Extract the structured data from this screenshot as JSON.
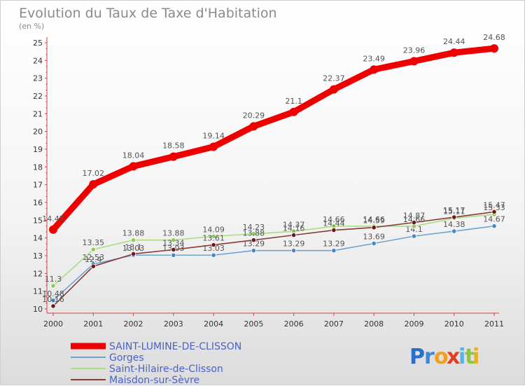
{
  "chart_data": {
    "type": "line",
    "title": "Evolution du Taux de Taxe d'Habitation",
    "subtitle": "(en %)",
    "x": [
      "2000",
      "2001",
      "2002",
      "2003",
      "2004",
      "2005",
      "2006",
      "2007",
      "2008",
      "2009",
      "2010",
      "2011"
    ],
    "ylim": [
      10,
      25
    ],
    "yticks": [
      10,
      11,
      12,
      13,
      14,
      15,
      16,
      17,
      18,
      19,
      20,
      21,
      22,
      23,
      24,
      25
    ],
    "grid": false,
    "legend_position": "bottom-left",
    "series": [
      {
        "name": "SAINT-LUMINE-DE-CLISSON",
        "color": "#ee0000",
        "marker_color": "#cc0000",
        "values": [
          14.47,
          17.02,
          18.04,
          18.58,
          19.14,
          20.29,
          21.1,
          22.37,
          23.49,
          23.96,
          24.44,
          24.68
        ],
        "labels": [
          "14.47",
          "17.02",
          "18.04",
          "18.58",
          "19.14",
          "20.29",
          "21.1",
          "22.37",
          "23.49",
          "23.96",
          "24.44",
          "24.68"
        ]
      },
      {
        "name": "Gorges",
        "color": "#6fa3cf",
        "marker_color": "#4a86c0",
        "values": [
          10.48,
          12.53,
          13.03,
          13.03,
          13.03,
          13.29,
          13.29,
          13.29,
          13.69,
          14.1,
          14.38,
          14.67
        ],
        "labels": [
          "10.48",
          "12.53",
          "13.03",
          "13.03",
          "13.03",
          "13.29",
          "13.29",
          "13.29",
          "13.69",
          "14.1",
          "14.38",
          "14.67"
        ]
      },
      {
        "name": "Saint-Hilaire-de-Clisson",
        "color": "#a8de80",
        "marker_color": "#8ccc58",
        "values": [
          11.3,
          13.35,
          13.88,
          13.88,
          14.09,
          14.23,
          14.37,
          14.66,
          14.66,
          14.66,
          15.11,
          15.33
        ],
        "labels": [
          "11.3",
          "13.35",
          "13.88",
          "13.88",
          "14.09",
          "14.23",
          "14.37",
          "14.66",
          "14.66",
          "14.66",
          "15.11",
          "15.33"
        ]
      },
      {
        "name": "Maisdon-sur-Sèvre",
        "color": "#8a3a3a",
        "marker_color": "#6b1a1a",
        "values": [
          10.16,
          12.4,
          13.1,
          13.34,
          13.61,
          13.88,
          14.16,
          14.44,
          14.59,
          14.87,
          15.17,
          15.47
        ],
        "labels": [
          "10.16",
          "12.4",
          "13.1",
          "13.34",
          "13.61",
          "13.88",
          "14.16",
          "14.44",
          "14.59",
          "14.87",
          "15.17",
          "15.47"
        ]
      }
    ]
  },
  "brand": {
    "letters": [
      "P",
      "r",
      "o",
      "x",
      "i",
      "t",
      "i"
    ],
    "colors": [
      "#2a6fc8",
      "#3a8ad8",
      "#f0a020",
      "#e04020",
      "#5ab0e8",
      "#8cc63f",
      "#e8b020"
    ]
  }
}
